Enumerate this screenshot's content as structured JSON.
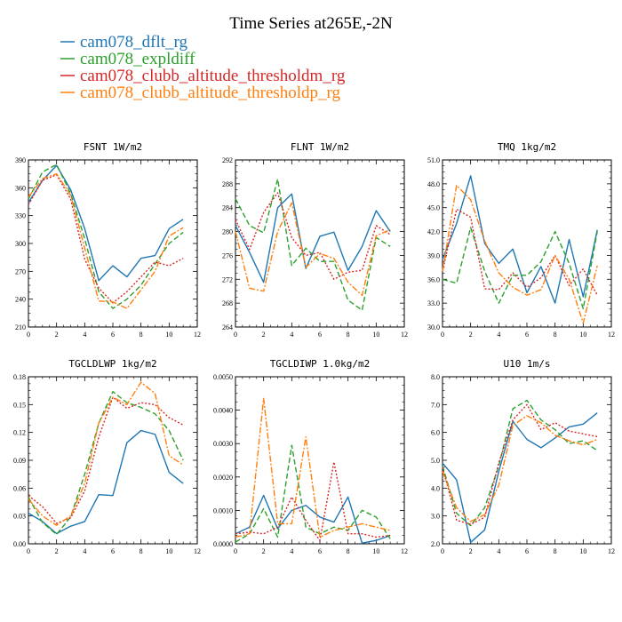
{
  "figure_title": "Time Series at265E,-2N",
  "legend": [
    {
      "name": "cam078_dflt_rg",
      "color": "#1f77b4",
      "dash": "solid"
    },
    {
      "name": "cam078_expldiff",
      "color": "#2ca02c",
      "dash": "dashed"
    },
    {
      "name": "cam078_clubb_altitude_thresholdm_rg",
      "color": "#d62728",
      "dash": "dotted"
    },
    {
      "name": "cam078_clubb_altitude_thresholdp_rg",
      "color": "#ff7f0e",
      "dash": "dashdot"
    }
  ],
  "chart_data": [
    {
      "type": "line",
      "title": "FSNT  1W/m2",
      "x": [
        0,
        1,
        2,
        3,
        4,
        5,
        6,
        7,
        8,
        9,
        10,
        11
      ],
      "xlim": [
        0,
        12
      ],
      "xticks": [
        0,
        2,
        4,
        6,
        8,
        10,
        12
      ],
      "ylim": [
        210,
        390
      ],
      "yticks": [
        210,
        240,
        270,
        300,
        330,
        360,
        390
      ],
      "ytick_labels": [
        "210",
        "240",
        "270",
        "300",
        "330",
        "360",
        "390"
      ],
      "series": [
        {
          "name": "cam078_dflt_rg",
          "values": [
            344,
            368,
            384,
            358,
            316,
            260,
            276,
            264,
            284,
            287,
            316,
            326
          ]
        },
        {
          "name": "cam078_expldiff",
          "values": [
            348,
            377,
            385,
            354,
            305,
            248,
            230,
            240,
            255,
            278,
            300,
            312
          ]
        },
        {
          "name": "cam078_clubb_altitude_thresholdm_rg",
          "values": [
            342,
            368,
            374,
            348,
            283,
            252,
            236,
            248,
            264,
            280,
            276,
            284
          ]
        },
        {
          "name": "cam078_clubb_altitude_thresholdp_rg",
          "values": [
            350,
            370,
            375,
            352,
            295,
            238,
            237,
            230,
            250,
            270,
            308,
            317
          ]
        }
      ]
    },
    {
      "type": "line",
      "title": "FLNT  1W/m2",
      "x": [
        0,
        1,
        2,
        3,
        4,
        5,
        6,
        7,
        8,
        9,
        10,
        11
      ],
      "xlim": [
        0,
        12
      ],
      "xticks": [
        0,
        2,
        4,
        6,
        8,
        10,
        12
      ],
      "ylim": [
        264,
        292
      ],
      "yticks": [
        264,
        268,
        272,
        276,
        280,
        284,
        288,
        292
      ],
      "ytick_labels": [
        "264",
        "268",
        "272",
        "276",
        "280",
        "284",
        "288",
        "292"
      ],
      "series": [
        {
          "name": "cam078_dflt_rg",
          "values": [
            281,
            276.5,
            271.5,
            284,
            286.3,
            273.8,
            279.2,
            279.9,
            273.5,
            277.5,
            283.5,
            280
          ]
        },
        {
          "name": "cam078_expldiff",
          "values": [
            285.5,
            281,
            279.8,
            288.8,
            274.3,
            277.2,
            275,
            275,
            268.5,
            266.8,
            279,
            277.5
          ]
        },
        {
          "name": "cam078_clubb_altitude_thresholdm_rg",
          "values": [
            282,
            277,
            283.2,
            286.5,
            279,
            276,
            276.5,
            272,
            273.2,
            273.5,
            281,
            279.5
          ]
        },
        {
          "name": "cam078_clubb_altitude_thresholdp_rg",
          "values": [
            280,
            270.5,
            270,
            280,
            284.8,
            274,
            276.3,
            275.5,
            271.5,
            269.3,
            279.3,
            280.3
          ]
        }
      ]
    },
    {
      "type": "line",
      "title": "TMQ  1kg/m2",
      "x": [
        0,
        1,
        2,
        3,
        4,
        5,
        6,
        7,
        8,
        9,
        10,
        11
      ],
      "xlim": [
        0,
        12
      ],
      "xticks": [
        0,
        2,
        4,
        6,
        8,
        10,
        12
      ],
      "ylim": [
        30,
        51
      ],
      "yticks": [
        30,
        33,
        36,
        39,
        42,
        45,
        48,
        51
      ],
      "ytick_labels": [
        "30.0",
        "33.0",
        "36.0",
        "39.0",
        "42.0",
        "45.0",
        "48.0",
        "51.0"
      ],
      "series": [
        {
          "name": "cam078_dflt_rg",
          "values": [
            38.5,
            43,
            49,
            40.5,
            38,
            39.8,
            34.3,
            37.6,
            33,
            41,
            33.8,
            42.2
          ]
        },
        {
          "name": "cam078_expldiff",
          "values": [
            36,
            35.5,
            42.5,
            37,
            33,
            36.5,
            36.5,
            38.2,
            42,
            38,
            32.3,
            42
          ]
        },
        {
          "name": "cam078_clubb_altitude_thresholdm_rg",
          "values": [
            37,
            44.8,
            43.8,
            34.8,
            34.7,
            36.8,
            35,
            36.2,
            39,
            35.2,
            37.3,
            34
          ]
        },
        {
          "name": "cam078_clubb_altitude_thresholdp_rg",
          "values": [
            37,
            47.8,
            46,
            40.8,
            36.8,
            35,
            34,
            34.7,
            39,
            36,
            30.5,
            37.7
          ]
        }
      ]
    },
    {
      "type": "line",
      "title": "TGCLDLWP  1kg/m2",
      "x": [
        0,
        1,
        2,
        3,
        4,
        5,
        6,
        7,
        8,
        9,
        10,
        11
      ],
      "xlim": [
        0,
        12
      ],
      "xticks": [
        0,
        2,
        4,
        6,
        8,
        10,
        12
      ],
      "ylim": [
        0,
        0.18
      ],
      "yticks": [
        0,
        0.03,
        0.06,
        0.09,
        0.12,
        0.15,
        0.18
      ],
      "ytick_labels": [
        "0.00",
        "0.03",
        "0.06",
        "0.09",
        "0.12",
        "0.15",
        "0.18"
      ],
      "series": [
        {
          "name": "cam078_dflt_rg",
          "values": [
            0.033,
            0.024,
            0.011,
            0.019,
            0.024,
            0.053,
            0.052,
            0.109,
            0.122,
            0.118,
            0.077,
            0.065
          ]
        },
        {
          "name": "cam078_expldiff",
          "values": [
            0.05,
            0.023,
            0.01,
            0.029,
            0.075,
            0.13,
            0.164,
            0.152,
            0.147,
            0.14,
            0.122,
            0.09
          ]
        },
        {
          "name": "cam078_clubb_altitude_thresholdm_rg",
          "values": [
            0.052,
            0.04,
            0.022,
            0.028,
            0.057,
            0.115,
            0.158,
            0.146,
            0.152,
            0.15,
            0.136,
            0.128
          ]
        },
        {
          "name": "cam078_clubb_altitude_thresholdp_rg",
          "values": [
            0.048,
            0.03,
            0.02,
            0.03,
            0.065,
            0.13,
            0.158,
            0.15,
            0.174,
            0.162,
            0.095,
            0.085
          ]
        }
      ]
    },
    {
      "type": "line",
      "title": "TGCLDIWP  1.0kg/m2",
      "x": [
        0,
        1,
        2,
        3,
        4,
        5,
        6,
        7,
        8,
        9,
        10,
        11
      ],
      "xlim": [
        0,
        12
      ],
      "xticks": [
        0,
        2,
        4,
        6,
        8,
        10,
        12
      ],
      "ylim": [
        0,
        0.005
      ],
      "yticks": [
        0,
        0.001,
        0.002,
        0.003,
        0.004,
        0.005
      ],
      "ytick_labels": [
        "0.0000",
        "0.0010",
        "0.0020",
        "0.0030",
        "0.0040",
        "0.0050"
      ],
      "series": [
        {
          "name": "cam078_dflt_rg",
          "values": [
            0.0003,
            0.0005,
            0.00145,
            0.00045,
            0.001,
            0.00115,
            0.0008,
            0.00065,
            0.0014,
            2e-05,
            0.0001,
            0.00025
          ]
        },
        {
          "name": "cam078_expldiff",
          "values": [
            5e-05,
            0.0003,
            0.00105,
            0.0002,
            0.00295,
            0.0005,
            0.0003,
            0.0005,
            0.0004,
            0.001,
            0.0008,
            0.00015
          ]
        },
        {
          "name": "cam078_clubb_altitude_thresholdm_rg",
          "values": [
            0.0003,
            0.00035,
            0.0003,
            0.0005,
            0.0014,
            0.0007,
            0.0001,
            0.00245,
            0.0003,
            0.0003,
            0.0002,
            0.00025
          ]
        },
        {
          "name": "cam078_clubb_altitude_thresholdp_rg",
          "values": [
            0.0002,
            0.0003,
            0.00435,
            0.0006,
            0.0006,
            0.0032,
            0.0002,
            0.0004,
            0.0005,
            0.0006,
            0.0005,
            0.0004
          ]
        }
      ]
    },
    {
      "type": "line",
      "title": "U10  1m/s",
      "x": [
        0,
        1,
        2,
        3,
        4,
        5,
        6,
        7,
        8,
        9,
        10,
        11
      ],
      "xlim": [
        0,
        12
      ],
      "xticks": [
        0,
        2,
        4,
        6,
        8,
        10,
        12
      ],
      "ylim": [
        2,
        8
      ],
      "yticks": [
        2,
        3,
        4,
        5,
        6,
        7,
        8
      ],
      "ytick_labels": [
        "2.0",
        "3.0",
        "4.0",
        "5.0",
        "6.0",
        "7.0",
        "8.0"
      ],
      "series": [
        {
          "name": "cam078_dflt_rg",
          "values": [
            4.9,
            4.3,
            2.05,
            2.5,
            4.6,
            6.4,
            5.75,
            5.45,
            5.8,
            6.2,
            6.3,
            6.7
          ]
        },
        {
          "name": "cam078_expldiff",
          "values": [
            4.8,
            3.1,
            2.65,
            3.3,
            4.8,
            6.85,
            7.15,
            6.45,
            6.1,
            5.6,
            5.7,
            5.35
          ]
        },
        {
          "name": "cam078_clubb_altitude_thresholdm_rg",
          "values": [
            4.75,
            2.85,
            2.7,
            2.95,
            4.9,
            6.45,
            7,
            6.1,
            6.35,
            6.05,
            5.95,
            5.85
          ]
        },
        {
          "name": "cam078_clubb_altitude_thresholdp_rg",
          "values": [
            4.6,
            3.3,
            2.8,
            3.05,
            4.1,
            6.25,
            6.6,
            6.35,
            5.9,
            5.7,
            5.55,
            5.75
          ]
        }
      ]
    }
  ]
}
